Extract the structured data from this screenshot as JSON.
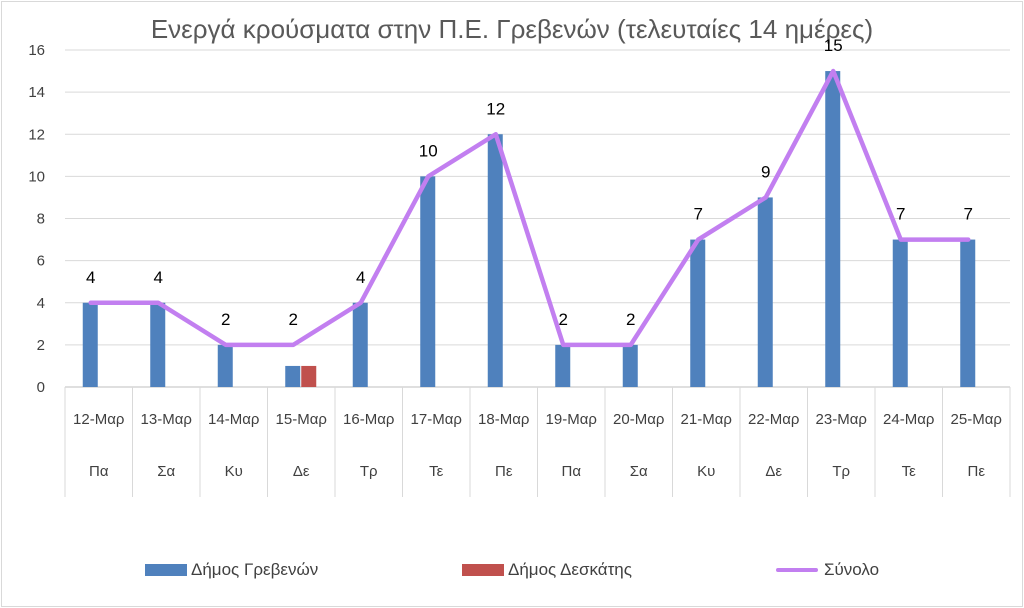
{
  "chart_data": {
    "type": "bar",
    "title": "Ενεργά κρούσματα στην Π.Ε. Γρεβενών (τελευταίες 14 ημέρες)",
    "categories": [
      "12-Μαρ",
      "13-Μαρ",
      "14-Μαρ",
      "15-Μαρ",
      "16-Μαρ",
      "17-Μαρ",
      "18-Μαρ",
      "19-Μαρ",
      "20-Μαρ",
      "21-Μαρ",
      "22-Μαρ",
      "23-Μαρ",
      "24-Μαρ",
      "25-Μαρ"
    ],
    "day_labels": [
      "Πα",
      "Σα",
      "Κυ",
      "Δε",
      "Τρ",
      "Τε",
      "Πε",
      "Πα",
      "Σα",
      "Κυ",
      "Δε",
      "Τρ",
      "Τε",
      "Πε"
    ],
    "series": [
      {
        "name": "Δήμος Γρεβενών",
        "type": "bar",
        "color": "#4f81bd",
        "values": [
          4,
          4,
          2,
          1,
          4,
          10,
          12,
          2,
          2,
          7,
          9,
          15,
          7,
          7
        ]
      },
      {
        "name": "Δήμος Δεσκάτης",
        "type": "bar",
        "color": "#c0504d",
        "values": [
          0,
          0,
          0,
          1,
          0,
          0,
          0,
          0,
          0,
          0,
          0,
          0,
          0,
          0
        ]
      },
      {
        "name": "Σύνολο",
        "type": "line",
        "color": "#c27ff0",
        "values": [
          4,
          4,
          2,
          2,
          4,
          10,
          12,
          2,
          2,
          7,
          9,
          15,
          7,
          7
        ]
      }
    ],
    "ylim": [
      0,
      16
    ],
    "yticks": [
      0,
      2,
      4,
      6,
      8,
      10,
      12,
      14,
      16
    ],
    "grid": true,
    "legend_position": "bottom"
  }
}
